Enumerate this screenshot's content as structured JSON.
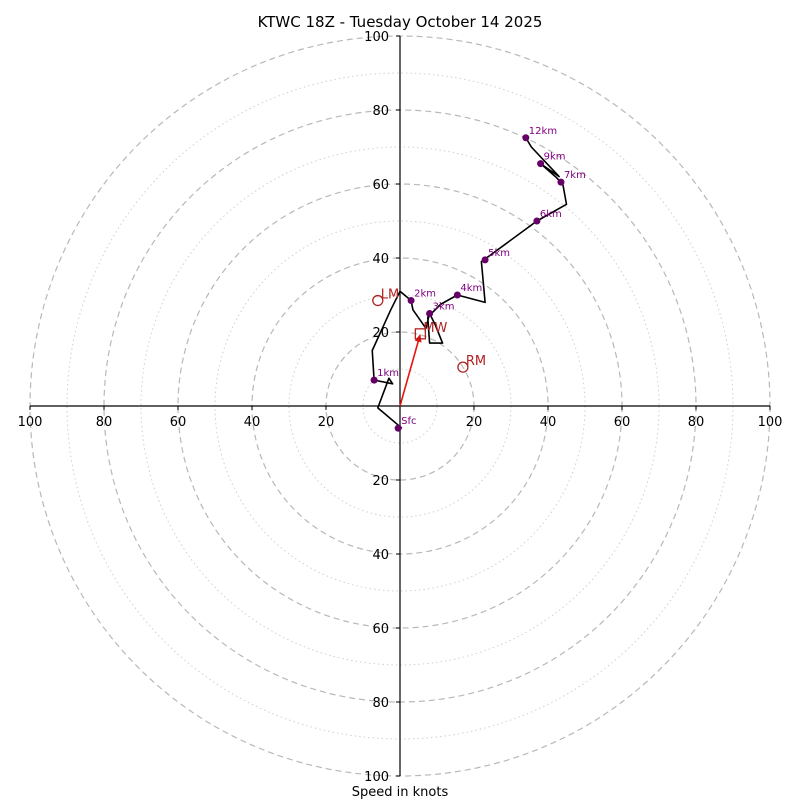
{
  "chart_data": {
    "type": "hodograph",
    "title": "KTWC 18Z - Tuesday October 14 2025",
    "xlabel": "Speed in knots",
    "xlim": [
      -100,
      100
    ],
    "ylim": [
      -100,
      100
    ],
    "xtick_values": [
      -100,
      -80,
      -60,
      -40,
      -20,
      20,
      40,
      60,
      80,
      100
    ],
    "xtick_labels": [
      "100",
      "80",
      "60",
      "40",
      "20",
      "20",
      "40",
      "60",
      "80",
      "100"
    ],
    "ytick_values": [
      100,
      80,
      60,
      40,
      20,
      -20,
      -40,
      -60,
      -80,
      -100
    ],
    "ytick_labels": [
      "100",
      "80",
      "60",
      "40",
      "20",
      "20",
      "40",
      "60",
      "80",
      "100"
    ],
    "rings_major": [
      20,
      40,
      60,
      80,
      100
    ],
    "rings_minor": [
      10,
      30,
      50,
      70,
      90
    ],
    "wind_profile": [
      [
        0.5,
        -6
      ],
      [
        -6,
        -0.5
      ],
      [
        -3,
        7.5
      ],
      [
        -2,
        6
      ],
      [
        -7,
        7
      ],
      [
        -7.5,
        15
      ],
      [
        -2.5,
        26
      ],
      [
        0,
        31
      ],
      [
        3,
        28.5
      ],
      [
        3.5,
        26
      ],
      [
        7,
        21
      ],
      [
        8,
        25
      ],
      [
        9.5,
        22
      ],
      [
        11.5,
        17
      ],
      [
        8,
        17
      ],
      [
        7.5,
        24
      ],
      [
        11,
        27.5
      ],
      [
        15.5,
        30
      ],
      [
        23,
        28
      ],
      [
        22,
        39
      ],
      [
        37,
        50
      ],
      [
        45,
        54.5
      ],
      [
        44,
        60
      ],
      [
        42,
        62
      ],
      [
        38,
        65.5
      ],
      [
        43,
        62
      ],
      [
        35.5,
        70
      ],
      [
        34,
        72.5
      ]
    ],
    "height_points": [
      {
        "label": "Sfc",
        "u": -0.5,
        "v": -6
      },
      {
        "label": "1km",
        "u": -7,
        "v": 7
      },
      {
        "label": "2km",
        "u": 3,
        "v": 28.5
      },
      {
        "label": "3km",
        "u": 8,
        "v": 25
      },
      {
        "label": "4km",
        "u": 15.5,
        "v": 30
      },
      {
        "label": "5km",
        "u": 23,
        "v": 39.5
      },
      {
        "label": "6km",
        "u": 37,
        "v": 50
      },
      {
        "label": "7km",
        "u": 43.5,
        "v": 60.5
      },
      {
        "label": "9km",
        "u": 38,
        "v": 65.5
      },
      {
        "label": "12km",
        "u": 34,
        "v": 72.5
      }
    ],
    "storm_motion": [
      {
        "label": "LM",
        "u": -6,
        "v": 28.5,
        "marker": "circle"
      },
      {
        "label": "MW",
        "u": 5.5,
        "v": 19.5,
        "marker": "square"
      },
      {
        "label": "RM",
        "u": 17,
        "v": 10.5,
        "marker": "circle"
      }
    ],
    "mean_wind_vector": {
      "u": 5.5,
      "v": 19.5
    },
    "colors": {
      "profile": "#000000",
      "height_points": "#660066",
      "height_labels": "#800080",
      "storm_motion": "#b22222",
      "mean_wind_arrow": "#e8120c",
      "axes": "#000000",
      "grid": "#b8b8b8"
    }
  }
}
